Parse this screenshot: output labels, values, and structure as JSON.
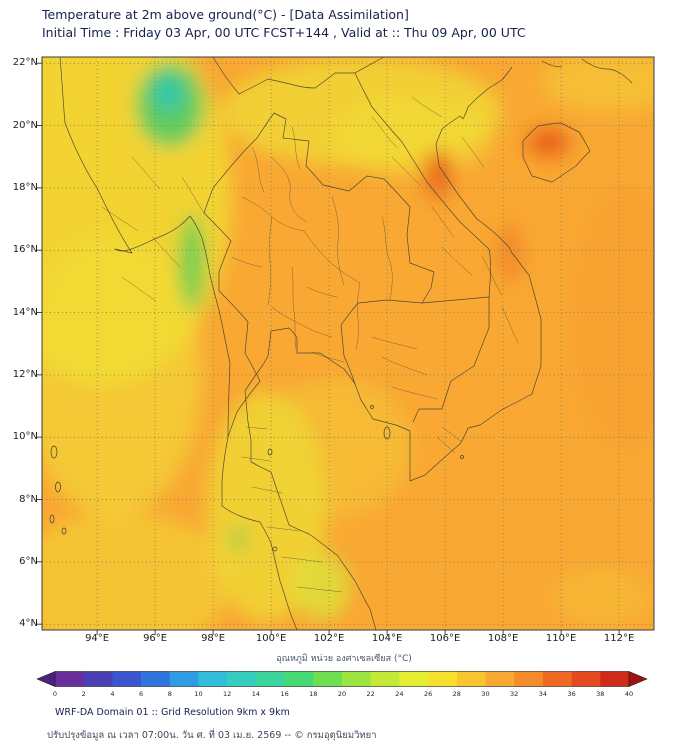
{
  "header": {
    "line1": "Temperature at 2m above ground(°C) - [Data Assimilation]",
    "line2": "Initial Time : Friday 03 Apr, 00 UTC FCST+144 , Valid at :: Thu 09 Apr, 00 UTC"
  },
  "map": {
    "y_tick_labels": [
      "22°N",
      "20°N",
      "18°N",
      "16°N",
      "14°N",
      "12°N",
      "10°N",
      "8°N",
      "6°N",
      "4°N"
    ],
    "x_tick_labels": [
      "94°E",
      "96°E",
      "98°E",
      "100°E",
      "102°E",
      "104°E",
      "106°E",
      "108°E",
      "110°E",
      "112°E"
    ],
    "base_color": "#F9A833",
    "warm_color": "#EE7320",
    "cool_color": "#2FC6AE"
  },
  "colorbar": {
    "label": "อุณหภูมิ หน่วย องศาเซลเซียส (°C)",
    "tick_labels": [
      "0",
      "2",
      "4",
      "6",
      "8",
      "10",
      "12",
      "14",
      "16",
      "18",
      "20",
      "22",
      "24",
      "26",
      "28",
      "30",
      "32",
      "34",
      "36",
      "38",
      "40"
    ],
    "segment_colors": [
      "#6A2D9C",
      "#4B3FB5",
      "#3A55CF",
      "#2E74DC",
      "#2E9BE3",
      "#30BEDC",
      "#34CDBE",
      "#3BD49C",
      "#47D973",
      "#6FDE52",
      "#9CE43F",
      "#C4EA36",
      "#E6EE31",
      "#F6E02E",
      "#F8C52F",
      "#F9A832",
      "#F68B2B",
      "#F16A24",
      "#E44A1E",
      "#D02A18"
    ],
    "left_arrow_color": "#4F1F7E",
    "right_arrow_color": "#A01010"
  },
  "footer": {
    "line1": "WRF-DA Domain 01 :: Grid Resolution 9km x 9km",
    "line2": "ปรับปรุงข้อมูล ณ เวลา 07:00น. วัน ศ. ที่ 03 เม.ย. 2569 -- © กรมอุตุนิยมวิทยา"
  }
}
